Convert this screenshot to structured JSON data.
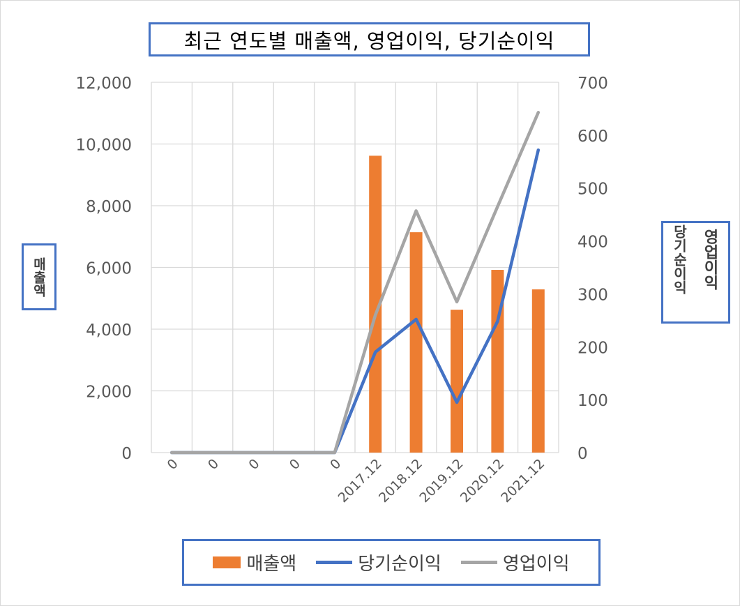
{
  "title": "최근 연도별 매출액, 영업이익, 당기순이익",
  "left_axis_label": "매출액",
  "right_axis_labels": [
    "당기순이익",
    "영업이익"
  ],
  "legend": [
    "매출액",
    "당기순이익",
    "영업이익"
  ],
  "colors": {
    "revenue": "#ed7d31",
    "net_income": "#4472c4",
    "operating_income": "#a5a5a5",
    "grid": "#d9d9d9",
    "tick_text": "#595959",
    "frame_border": "#4472c4"
  },
  "chart_data": {
    "type": "bar",
    "categories": [
      "0",
      "0",
      "0",
      "0",
      "0",
      "2017.12",
      "2018.12",
      "2019.12",
      "2020.12",
      "2021.12"
    ],
    "series": [
      {
        "name": "매출액",
        "type": "bar",
        "axis": "left",
        "values": [
          0,
          0,
          0,
          0,
          0,
          9620,
          7140,
          4630,
          5920,
          5290
        ]
      },
      {
        "name": "당기순이익",
        "type": "line",
        "axis": "right",
        "values": [
          0,
          0,
          0,
          0,
          0,
          190,
          252,
          95,
          248,
          572
        ]
      },
      {
        "name": "영업이익",
        "type": "line",
        "axis": "right",
        "values": [
          0,
          0,
          0,
          0,
          0,
          260,
          457,
          285,
          465,
          643
        ]
      }
    ],
    "y_left": {
      "label": "매출액",
      "ylim": [
        0,
        12000
      ],
      "ticks": [
        "0",
        "2,000",
        "4,000",
        "6,000",
        "8,000",
        "10,000",
        "12,000"
      ]
    },
    "y_right": {
      "label": "당기순이익 영업이익",
      "ylim": [
        0,
        700
      ],
      "ticks": [
        "0",
        "100",
        "200",
        "300",
        "400",
        "500",
        "600",
        "700"
      ]
    },
    "grid": true,
    "legend_position": "bottom"
  }
}
